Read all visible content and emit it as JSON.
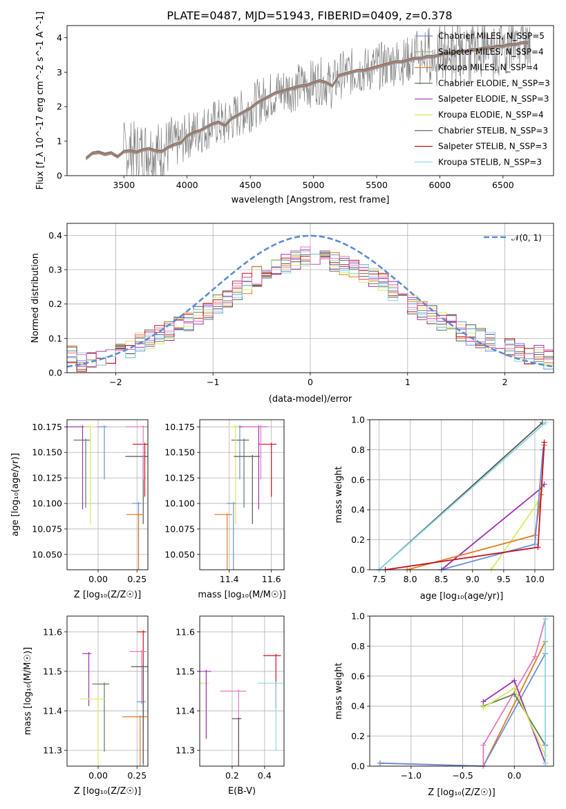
{
  "chart_data": [
    {
      "type": "line",
      "title": "PLATE=0487, MJD=51943, FIBERID=0409, z=0.378",
      "xlabel": "wavelength [Angstrom, rest frame]",
      "ylabel": "Flux [f_λ 10^-17 erg cm^-2 s^-1 A^-1]",
      "xlim": [
        3050,
        6900
      ],
      "ylim": [
        0,
        4.35
      ],
      "xticks": [
        "3500",
        "4000",
        "4500",
        "5000",
        "5500",
        "6000",
        "6500"
      ],
      "yticks": [
        "0",
        "1",
        "2",
        "3",
        "4"
      ],
      "grid": false,
      "legend_position": "right",
      "series": [
        {
          "name": "Chabrier MILES, N_SSP=5",
          "color": "#6a8fd9"
        },
        {
          "name": "Salpeter MILES, N_SSP=4",
          "color": "#a8a878"
        },
        {
          "name": "Kroupa MILES, N_SSP=4",
          "color": "#e07b20"
        },
        {
          "name": "Chabrier ELODIE, N_SSP=3",
          "color": "#5a7d5a"
        },
        {
          "name": "Salpeter ELODIE, N_SSP=3",
          "color": "#9b30b0"
        },
        {
          "name": "Kroupa ELODIE, N_SSP=4",
          "color": "#d8e860"
        },
        {
          "name": "Chabrier STELIB, N_SSP=3",
          "color": "#555555"
        },
        {
          "name": "Salpeter STELIB, N_SSP=3",
          "color": "#c81020"
        },
        {
          "name": "Kroupa STELIB, N_SSP=3",
          "color": "#88d8e0"
        }
      ],
      "spectrum_x": [
        3200,
        3250,
        3300,
        3350,
        3400,
        3450,
        3500,
        3550,
        3600,
        3650,
        3700,
        3750,
        3800,
        3850,
        3900,
        3950,
        4000,
        4050,
        4100,
        4150,
        4200,
        4250,
        4300,
        4350,
        4400,
        4450,
        4500,
        4550,
        4600,
        4650,
        4700,
        4750,
        4800,
        4850,
        4900,
        4950,
        5000,
        5050,
        5100,
        5150,
        5200,
        5250,
        5300,
        5350,
        5400,
        5450,
        5500,
        5550,
        5600,
        5650,
        5700,
        5750,
        5800,
        5850,
        5900,
        5950,
        6000,
        6050,
        6100,
        6150,
        6200,
        6250,
        6300,
        6350,
        6400,
        6450,
        6500,
        6550,
        6600,
        6650,
        6700
      ],
      "spectrum_y": [
        0.5,
        0.65,
        0.68,
        0.62,
        0.66,
        0.55,
        0.7,
        0.72,
        0.68,
        0.75,
        0.78,
        0.72,
        0.7,
        0.82,
        0.9,
        0.95,
        1.15,
        1.25,
        1.3,
        1.4,
        1.5,
        1.55,
        1.45,
        1.65,
        1.75,
        1.85,
        1.95,
        2.1,
        2.2,
        2.3,
        2.4,
        2.45,
        2.5,
        2.55,
        2.6,
        2.62,
        2.7,
        2.75,
        2.7,
        2.6,
        2.9,
        2.95,
        3.0,
        3.05,
        3.05,
        3.1,
        3.15,
        3.2,
        3.25,
        3.3,
        3.3,
        3.35,
        3.4,
        3.4,
        3.45,
        3.45,
        3.5,
        3.55,
        3.55,
        3.6,
        3.6,
        3.65,
        3.65,
        3.7,
        3.7,
        3.75,
        3.75,
        3.8,
        3.8,
        3.85,
        3.85
      ]
    },
    {
      "type": "histogram",
      "xlabel": "(data-model)/error",
      "ylabel": "Normed distribution",
      "xlim": [
        -2.5,
        2.5
      ],
      "ylim": [
        0,
        0.435
      ],
      "xticks": [
        "−2",
        "−1",
        "0",
        "1",
        "2"
      ],
      "yticks": [
        "0.0",
        "0.1",
        "0.2",
        "0.3",
        "0.4"
      ],
      "grid": true,
      "legend_position": "top-right",
      "reference_curve": {
        "name": "𝒩(0, 1)",
        "color": "#5b8ad6",
        "mean": 0,
        "sigma": 1
      },
      "bin_width": 0.1,
      "bin_start": -2.5,
      "values": [
        0.05,
        0.03,
        0.035,
        0.04,
        0.05,
        0.06,
        0.07,
        0.09,
        0.1,
        0.11,
        0.12,
        0.14,
        0.15,
        0.17,
        0.18,
        0.2,
        0.22,
        0.24,
        0.26,
        0.28,
        0.3,
        0.31,
        0.32,
        0.33,
        0.34,
        0.34,
        0.33,
        0.32,
        0.31,
        0.3,
        0.29,
        0.28,
        0.26,
        0.24,
        0.22,
        0.2,
        0.18,
        0.17,
        0.15,
        0.14,
        0.12,
        0.11,
        0.1,
        0.09,
        0.08,
        0.07,
        0.06,
        0.05,
        0.05,
        0.04
      ]
    },
    {
      "type": "scatter",
      "xlabel": "Z [log₁₀(Z/Z☉)]",
      "ylabel": "age  [log₁₀(age/yr)]",
      "xlim": [
        -0.2,
        0.32
      ],
      "ylim": [
        10.035,
        10.182
      ],
      "xticks": [
        "0.00",
        "0.25"
      ],
      "yticks": [
        "10.050",
        "10.075",
        "10.100",
        "10.125",
        "10.150",
        "10.175"
      ],
      "grid": true,
      "points": [
        {
          "x": 0.04,
          "y": 10.175,
          "color": "#6a8fd9"
        },
        {
          "x": -0.08,
          "y": 10.162,
          "color": "#5a7d5a"
        },
        {
          "x": -0.1,
          "y": 10.175,
          "color": "#9b30b0"
        },
        {
          "x": -0.05,
          "y": 10.175,
          "color": "#d8e860"
        },
        {
          "x": 0.3,
          "y": 10.158,
          "color": "#c81020"
        },
        {
          "x": 0.29,
          "y": 10.146,
          "color": "#555555"
        },
        {
          "x": 0.26,
          "y": 10.1,
          "color": "#6a8fd9"
        },
        {
          "x": 0.26,
          "y": 10.089,
          "color": "#e07b20"
        },
        {
          "x": 0.29,
          "y": 10.175,
          "color": "#e377c2"
        }
      ]
    },
    {
      "type": "scatter",
      "xlabel": "mass [log₁₀(M/M☉)]",
      "ylabel": "",
      "xlim": [
        11.26,
        11.66
      ],
      "ylim": [
        10.035,
        10.182
      ],
      "xticks": [
        "11.4",
        "11.6"
      ],
      "yticks": [
        "10.050",
        "10.075",
        "10.100",
        "10.125",
        "10.150",
        "10.175"
      ],
      "grid": true,
      "points": [
        {
          "x": 11.45,
          "y": 10.175,
          "color": "#6a8fd9"
        },
        {
          "x": 11.47,
          "y": 10.162,
          "color": "#5a7d5a"
        },
        {
          "x": 11.54,
          "y": 10.175,
          "color": "#9b30b0"
        },
        {
          "x": 11.43,
          "y": 10.175,
          "color": "#d8e860"
        },
        {
          "x": 11.6,
          "y": 10.158,
          "color": "#c81020"
        },
        {
          "x": 11.51,
          "y": 10.146,
          "color": "#555555"
        },
        {
          "x": 11.42,
          "y": 10.1,
          "color": "#6a8fd9"
        },
        {
          "x": 11.39,
          "y": 10.089,
          "color": "#e07b20"
        },
        {
          "x": 11.55,
          "y": 10.175,
          "color": "#e377c2"
        }
      ]
    },
    {
      "type": "line",
      "xlabel": "age  [log₁₀(age/yr)]",
      "ylabel": "mass weight",
      "xlim": [
        7.35,
        10.3
      ],
      "ylim": [
        0,
        1.0
      ],
      "xticks": [
        "7.5",
        "8.0",
        "8.5",
        "9.0",
        "9.5",
        "10.0"
      ],
      "yticks": [
        "0.0",
        "0.2",
        "0.4",
        "0.6",
        "0.8",
        "1.0"
      ],
      "grid": true,
      "series": [
        {
          "color": "#555555",
          "x": [
            7.5,
            10.12
          ],
          "y": [
            0.0,
            0.98
          ]
        },
        {
          "color": "#9b30b0",
          "x": [
            8.5,
            10.12,
            10.15
          ],
          "y": [
            0.0,
            0.55,
            0.57
          ]
        },
        {
          "color": "#d8e860",
          "x": [
            9.3,
            10.05,
            10.12
          ],
          "y": [
            0.0,
            0.45,
            0.55
          ]
        },
        {
          "color": "#e07b20",
          "x": [
            7.95,
            10.0,
            10.1,
            10.15
          ],
          "y": [
            0.0,
            0.23,
            0.5,
            0.83
          ]
        },
        {
          "color": "#6a8fd9",
          "x": [
            8.5,
            10.0,
            10.13
          ],
          "y": [
            0.0,
            0.17,
            0.8
          ]
        },
        {
          "color": "#c81020",
          "x": [
            7.6,
            10.05,
            10.15
          ],
          "y": [
            0.0,
            0.15,
            0.85
          ]
        },
        {
          "color": "#88d8e0",
          "x": [
            7.5,
            10.17
          ],
          "y": [
            0.0,
            0.98
          ]
        }
      ]
    },
    {
      "type": "scatter",
      "xlabel": "Z [log₁₀(Z/Z☉)]",
      "ylabel": "mass [log₁₀(M/M☉)]",
      "xlim": [
        -0.2,
        0.32
      ],
      "ylim": [
        11.26,
        11.64
      ],
      "xticks": [
        "0.00",
        "0.25"
      ],
      "yticks": [
        "11.3",
        "11.4",
        "11.5",
        "11.6"
      ],
      "grid": true,
      "points": [
        {
          "x": -0.06,
          "y": 11.545,
          "color": "#9b30b0"
        },
        {
          "x": 0.04,
          "y": 11.468,
          "color": "#5a7d5a"
        },
        {
          "x": 0.0,
          "y": 11.43,
          "color": "#d8e860"
        },
        {
          "x": 0.29,
          "y": 11.6,
          "color": "#c81020"
        },
        {
          "x": 0.28,
          "y": 11.55,
          "color": "#e377c2"
        },
        {
          "x": 0.27,
          "y": 11.385,
          "color": "#e07b20"
        },
        {
          "x": 0.29,
          "y": 11.423,
          "color": "#6a8fd9"
        },
        {
          "x": 0.29,
          "y": 11.512,
          "color": "#555555"
        }
      ]
    },
    {
      "type": "scatter",
      "xlabel": "E(B-V)",
      "ylabel": "",
      "xlim": [
        0.0,
        0.52
      ],
      "ylim": [
        11.26,
        11.64
      ],
      "xticks": [
        "0.2",
        "0.4"
      ],
      "yticks": [
        "11.3",
        "11.4",
        "11.5",
        "11.6"
      ],
      "grid": true,
      "points": [
        {
          "x": 0.04,
          "y": 11.47,
          "color": "#d8e860"
        },
        {
          "x": 0.04,
          "y": 11.5,
          "color": "#9b30b0"
        },
        {
          "x": 0.24,
          "y": 11.45,
          "color": "#e377c2"
        },
        {
          "x": 0.24,
          "y": 11.38,
          "color": "#555555"
        },
        {
          "x": 0.47,
          "y": 11.54,
          "color": "#c81020"
        },
        {
          "x": 0.47,
          "y": 11.47,
          "color": "#88d8e0"
        }
      ]
    },
    {
      "type": "line",
      "xlabel": "Z [log₁₀(Z/Z☉)]",
      "ylabel": "mass weight",
      "xlim": [
        -1.4,
        0.38
      ],
      "ylim": [
        0,
        1.0
      ],
      "xticks": [
        "−1.0",
        "−0.5",
        "0.0",
        "0.5"
      ],
      "yticks": [
        "0.0",
        "0.2",
        "0.4",
        "0.6",
        "0.8",
        "1.0"
      ],
      "grid": true,
      "series": [
        {
          "color": "#e07b20",
          "x": [
            -1.3,
            -0.3,
            0.3
          ],
          "y": [
            0.02,
            0.0,
            0.83
          ]
        },
        {
          "color": "#6a8fd9",
          "x": [
            -1.3,
            -0.3,
            0.3
          ],
          "y": [
            0.02,
            0.0,
            0.75
          ]
        },
        {
          "color": "#e377c2",
          "x": [
            -0.3,
            -0.3,
            0.2,
            0.3
          ],
          "y": [
            0.0,
            0.14,
            0.73,
            0.98
          ]
        },
        {
          "color": "#9b30b0",
          "x": [
            -0.3,
            0.0,
            0.3
          ],
          "y": [
            0.43,
            0.57,
            0.02
          ]
        },
        {
          "color": "#5a7d5a",
          "x": [
            -0.3,
            0.0,
            0.3
          ],
          "y": [
            0.4,
            0.48,
            0.14
          ]
        },
        {
          "color": "#d8e860",
          "x": [
            -0.3,
            0.0,
            0.3
          ],
          "y": [
            0.39,
            0.52,
            0.07
          ]
        },
        {
          "color": "#88d8e0",
          "x": [
            0.3,
            0.3
          ],
          "y": [
            0.02,
            0.98
          ]
        }
      ]
    }
  ]
}
